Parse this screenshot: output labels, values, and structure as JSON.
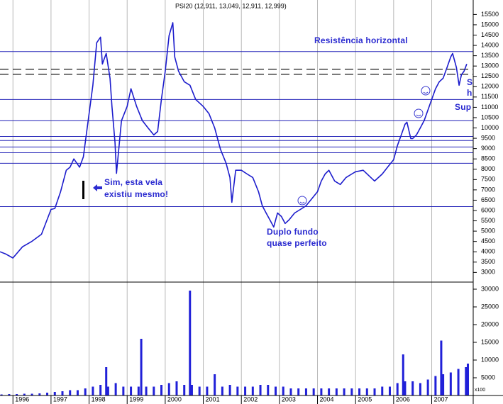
{
  "chart_data": {
    "type": "line",
    "title": "PSI20 (12,911, 13,049, 12,911, 12,999)",
    "xlim": [
      1995.66,
      2008.09
    ],
    "xticks": [
      1996,
      1997,
      1998,
      1999,
      2000,
      2001,
      2002,
      2003,
      2004,
      2005,
      2006,
      2007
    ],
    "ylim": [
      2600,
      16200
    ],
    "yticks": [
      3000,
      3500,
      4000,
      4500,
      5000,
      5500,
      6000,
      6500,
      7000,
      7500,
      8000,
      8500,
      9000,
      9500,
      10000,
      10500,
      11000,
      11500,
      12000,
      12500,
      13000,
      13500,
      14000,
      14500,
      15000,
      15500
    ],
    "y2lim": [
      0,
      31600
    ],
    "y2ticks": [
      5000,
      10000,
      15000,
      20000,
      25000,
      30000
    ],
    "y2_unit_label": "x100",
    "grid": true,
    "series": [
      {
        "color": "#1c1ccc",
        "x": [
          1995.66,
          1995.8,
          1996.0,
          1996.25,
          1996.5,
          1996.75,
          1997.0,
          1997.1,
          1997.25,
          1997.4,
          1997.5,
          1997.6,
          1997.75,
          1997.85,
          1998.0,
          1998.1,
          1998.2,
          1998.3,
          1998.35,
          1998.45,
          1998.55,
          1998.6,
          1998.68,
          1998.72,
          1998.85,
          1999.0,
          1999.1,
          1999.25,
          1999.4,
          1999.55,
          1999.7,
          1999.8,
          1999.9,
          2000.0,
          2000.1,
          2000.2,
          2000.25,
          2000.35,
          2000.5,
          2000.65,
          2000.8,
          2001.0,
          2001.15,
          2001.3,
          2001.45,
          2001.6,
          2001.7,
          2001.75,
          2001.85,
          2002.0,
          2002.15,
          2002.3,
          2002.45,
          2002.55,
          2002.65,
          2002.75,
          2002.85,
          2002.95,
          2003.05,
          2003.15,
          2003.25,
          2003.4,
          2003.55,
          2003.7,
          2003.85,
          2004.0,
          2004.1,
          2004.2,
          2004.3,
          2004.45,
          2004.6,
          2004.75,
          2004.9,
          2005.0,
          2005.2,
          2005.4,
          2005.5,
          2005.7,
          2005.85,
          2006.0,
          2006.1,
          2006.2,
          2006.3,
          2006.35,
          2006.45,
          2006.5,
          2006.6,
          2006.7,
          2006.8,
          2006.9,
          2007.0,
          2007.1,
          2007.2,
          2007.3,
          2007.4,
          2007.5,
          2007.55,
          2007.65,
          2007.72,
          2007.78,
          2007.85,
          2007.92
        ],
        "values": [
          4000,
          3900,
          3700,
          4240,
          4510,
          4850,
          6050,
          6100,
          6900,
          7950,
          8100,
          8500,
          8100,
          8600,
          10700,
          12070,
          14130,
          14400,
          13100,
          13610,
          12400,
          11040,
          9300,
          7800,
          10350,
          11040,
          11900,
          11040,
          10350,
          10000,
          9660,
          9830,
          11380,
          12750,
          14470,
          15100,
          13440,
          12750,
          12240,
          12070,
          11380,
          11040,
          10690,
          10000,
          8970,
          8290,
          7600,
          6400,
          7950,
          7950,
          7770,
          7600,
          6910,
          6230,
          5880,
          5540,
          5200,
          5880,
          5710,
          5370,
          5540,
          5880,
          6050,
          6230,
          6570,
          6910,
          7430,
          7770,
          7950,
          7430,
          7260,
          7600,
          7770,
          7880,
          7950,
          7600,
          7430,
          7770,
          8120,
          8460,
          9150,
          9660,
          10180,
          10280,
          9490,
          9490,
          9660,
          10000,
          10350,
          10860,
          11380,
          11900,
          12240,
          12410,
          12920,
          13440,
          13610,
          12920,
          12070,
          12580,
          12750,
          13100
        ]
      },
      {
        "type": "bar",
        "axis": "y2",
        "color": "#2020d8",
        "x": [
          1995.7,
          1995.9,
          1996.1,
          1996.3,
          1996.5,
          1996.7,
          1996.9,
          1997.1,
          1997.3,
          1997.5,
          1997.7,
          1997.9,
          1998.1,
          1998.3,
          1998.45,
          1998.5,
          1998.7,
          1998.9,
          1999.1,
          1999.3,
          1999.37,
          1999.5,
          1999.7,
          1999.9,
          2000.1,
          2000.3,
          2000.5,
          2000.65,
          2000.7,
          2000.9,
          2001.1,
          2001.3,
          2001.5,
          2001.7,
          2001.9,
          2002.1,
          2002.3,
          2002.5,
          2002.7,
          2002.9,
          2003.1,
          2003.3,
          2003.5,
          2003.7,
          2003.9,
          2004.1,
          2004.3,
          2004.5,
          2004.7,
          2004.9,
          2005.1,
          2005.3,
          2005.5,
          2005.7,
          2005.9,
          2006.1,
          2006.25,
          2006.3,
          2006.5,
          2006.7,
          2006.9,
          2007.1,
          2007.25,
          2007.3,
          2007.5,
          2007.7,
          2007.9,
          2007.95
        ],
        "values": [
          300,
          400,
          400,
          500,
          500,
          600,
          800,
          1000,
          1200,
          1500,
          1500,
          2000,
          2500,
          3000,
          8000,
          2500,
          3500,
          2500,
          2500,
          2500,
          16000,
          2500,
          2500,
          3000,
          3500,
          4000,
          3000,
          29600,
          3000,
          2500,
          2500,
          6000,
          2500,
          3000,
          2500,
          2500,
          2500,
          3000,
          3000,
          2500,
          2500,
          2000,
          2000,
          2000,
          2000,
          2000,
          2000,
          2000,
          2000,
          2000,
          2000,
          2000,
          2000,
          2500,
          2500,
          3500,
          11600,
          4000,
          4000,
          3500,
          4500,
          5500,
          15500,
          6000,
          6500,
          7500,
          8000,
          9000
        ]
      }
    ],
    "levels": [
      13700,
      11380,
      10350,
      9590,
      9390,
      9080,
      8800,
      8290,
      6190
    ],
    "dashed_levels": [
      12850,
      12600
    ],
    "level_color": "#2323b8",
    "annotations": [
      "Resistência horizontal",
      "Sim, esta vela",
      "existiu mesmo!",
      "Duplo fundo",
      "quase perfeito",
      "S",
      "h",
      "Sup"
    ]
  }
}
